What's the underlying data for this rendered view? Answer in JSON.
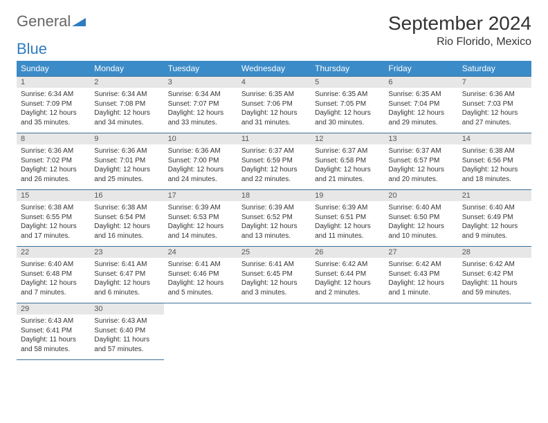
{
  "logo": {
    "part1": "General",
    "part2": "Blue"
  },
  "title": "September 2024",
  "location": "Rio Florido, Mexico",
  "colors": {
    "header_bg": "#3b8bc8",
    "header_text": "#ffffff",
    "daynum_bg": "#e7e7e7",
    "daynum_text": "#555555",
    "row_border": "#3b6f96",
    "logo_blue": "#2e7cc0",
    "body_text": "#333333"
  },
  "weekdays": [
    "Sunday",
    "Monday",
    "Tuesday",
    "Wednesday",
    "Thursday",
    "Friday",
    "Saturday"
  ],
  "days": [
    {
      "n": 1,
      "sr": "6:34 AM",
      "ss": "7:09 PM",
      "dl": "12 hours and 35 minutes."
    },
    {
      "n": 2,
      "sr": "6:34 AM",
      "ss": "7:08 PM",
      "dl": "12 hours and 34 minutes."
    },
    {
      "n": 3,
      "sr": "6:34 AM",
      "ss": "7:07 PM",
      "dl": "12 hours and 33 minutes."
    },
    {
      "n": 4,
      "sr": "6:35 AM",
      "ss": "7:06 PM",
      "dl": "12 hours and 31 minutes."
    },
    {
      "n": 5,
      "sr": "6:35 AM",
      "ss": "7:05 PM",
      "dl": "12 hours and 30 minutes."
    },
    {
      "n": 6,
      "sr": "6:35 AM",
      "ss": "7:04 PM",
      "dl": "12 hours and 29 minutes."
    },
    {
      "n": 7,
      "sr": "6:36 AM",
      "ss": "7:03 PM",
      "dl": "12 hours and 27 minutes."
    },
    {
      "n": 8,
      "sr": "6:36 AM",
      "ss": "7:02 PM",
      "dl": "12 hours and 26 minutes."
    },
    {
      "n": 9,
      "sr": "6:36 AM",
      "ss": "7:01 PM",
      "dl": "12 hours and 25 minutes."
    },
    {
      "n": 10,
      "sr": "6:36 AM",
      "ss": "7:00 PM",
      "dl": "12 hours and 24 minutes."
    },
    {
      "n": 11,
      "sr": "6:37 AM",
      "ss": "6:59 PM",
      "dl": "12 hours and 22 minutes."
    },
    {
      "n": 12,
      "sr": "6:37 AM",
      "ss": "6:58 PM",
      "dl": "12 hours and 21 minutes."
    },
    {
      "n": 13,
      "sr": "6:37 AM",
      "ss": "6:57 PM",
      "dl": "12 hours and 20 minutes."
    },
    {
      "n": 14,
      "sr": "6:38 AM",
      "ss": "6:56 PM",
      "dl": "12 hours and 18 minutes."
    },
    {
      "n": 15,
      "sr": "6:38 AM",
      "ss": "6:55 PM",
      "dl": "12 hours and 17 minutes."
    },
    {
      "n": 16,
      "sr": "6:38 AM",
      "ss": "6:54 PM",
      "dl": "12 hours and 16 minutes."
    },
    {
      "n": 17,
      "sr": "6:39 AM",
      "ss": "6:53 PM",
      "dl": "12 hours and 14 minutes."
    },
    {
      "n": 18,
      "sr": "6:39 AM",
      "ss": "6:52 PM",
      "dl": "12 hours and 13 minutes."
    },
    {
      "n": 19,
      "sr": "6:39 AM",
      "ss": "6:51 PM",
      "dl": "12 hours and 11 minutes."
    },
    {
      "n": 20,
      "sr": "6:40 AM",
      "ss": "6:50 PM",
      "dl": "12 hours and 10 minutes."
    },
    {
      "n": 21,
      "sr": "6:40 AM",
      "ss": "6:49 PM",
      "dl": "12 hours and 9 minutes."
    },
    {
      "n": 22,
      "sr": "6:40 AM",
      "ss": "6:48 PM",
      "dl": "12 hours and 7 minutes."
    },
    {
      "n": 23,
      "sr": "6:41 AM",
      "ss": "6:47 PM",
      "dl": "12 hours and 6 minutes."
    },
    {
      "n": 24,
      "sr": "6:41 AM",
      "ss": "6:46 PM",
      "dl": "12 hours and 5 minutes."
    },
    {
      "n": 25,
      "sr": "6:41 AM",
      "ss": "6:45 PM",
      "dl": "12 hours and 3 minutes."
    },
    {
      "n": 26,
      "sr": "6:42 AM",
      "ss": "6:44 PM",
      "dl": "12 hours and 2 minutes."
    },
    {
      "n": 27,
      "sr": "6:42 AM",
      "ss": "6:43 PM",
      "dl": "12 hours and 1 minute."
    },
    {
      "n": 28,
      "sr": "6:42 AM",
      "ss": "6:42 PM",
      "dl": "11 hours and 59 minutes."
    },
    {
      "n": 29,
      "sr": "6:43 AM",
      "ss": "6:41 PM",
      "dl": "11 hours and 58 minutes."
    },
    {
      "n": 30,
      "sr": "6:43 AM",
      "ss": "6:40 PM",
      "dl": "11 hours and 57 minutes."
    }
  ],
  "labels": {
    "sunrise": "Sunrise:",
    "sunset": "Sunset:",
    "daylight": "Daylight:"
  }
}
